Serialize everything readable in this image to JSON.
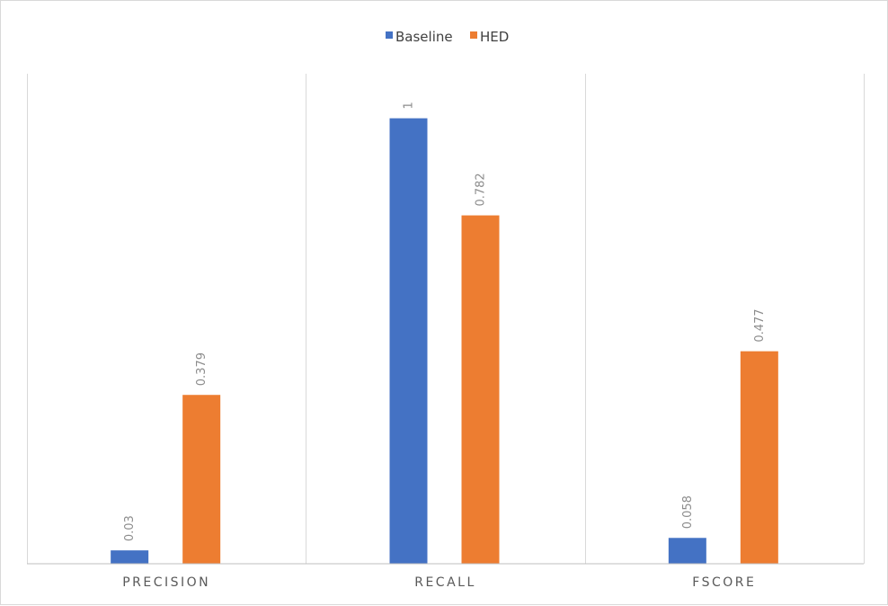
{
  "chart_data": {
    "type": "bar",
    "title": "",
    "xlabel": "",
    "ylabel": "",
    "categories": [
      "PRECISION",
      "RECALL",
      "FSCORE"
    ],
    "series": [
      {
        "name": "Baseline",
        "color": "#4472c4",
        "values": [
          0.03,
          1,
          0.058
        ]
      },
      {
        "name": "HED",
        "color": "#ed7d31",
        "values": [
          0.379,
          0.782,
          0.477
        ]
      }
    ],
    "ylim": [
      0,
      1.1
    ],
    "legend": "top-center",
    "grid": "vertical category separators",
    "data_labels": "rotated, above bars"
  }
}
